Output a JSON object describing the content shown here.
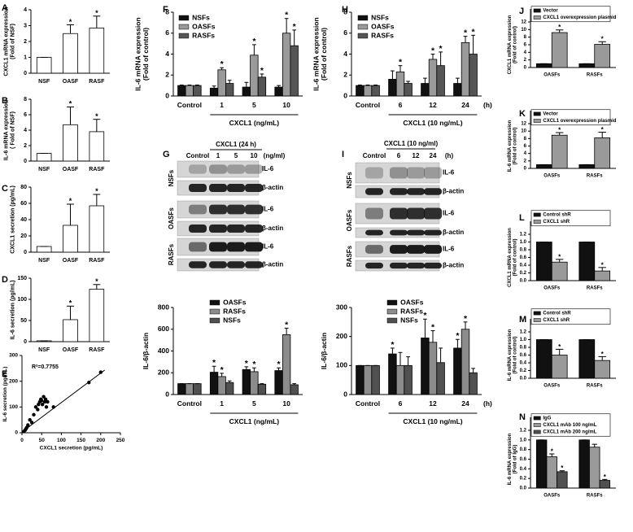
{
  "chart_data": [
    {
      "panel": "A",
      "type": "bar",
      "categories": [
        "NSF",
        "OASF",
        "RASF"
      ],
      "values": [
        1,
        2.5,
        2.85
      ],
      "errors": [
        0,
        0.55,
        0.75
      ],
      "annotations": [
        null,
        "*",
        "*"
      ],
      "color": "#ffffff",
      "ylim": [
        0,
        4
      ],
      "yticks": [
        0,
        1,
        2,
        3,
        4
      ],
      "ylabel": [
        "CXCL1 mRNA expression",
        "(Fold of NSF)"
      ]
    },
    {
      "panel": "B",
      "type": "bar",
      "categories": [
        "NSF",
        "OASF",
        "RASF"
      ],
      "values": [
        1,
        4.7,
        3.8
      ],
      "errors": [
        0,
        2.3,
        1.6
      ],
      "annotations": [
        null,
        "*",
        "*"
      ],
      "color": "#ffffff",
      "ylim": [
        0,
        8
      ],
      "yticks": [
        0,
        2,
        4,
        6,
        8
      ],
      "ylabel": [
        "IL-6 mRNA expression",
        "( Fold of NSF)"
      ]
    },
    {
      "panel": "C",
      "type": "bar",
      "categories": [
        "NSF",
        "OASF",
        "RASF"
      ],
      "values": [
        7,
        33,
        57
      ],
      "errors": [
        0,
        26,
        14
      ],
      "annotations": [
        null,
        "*",
        "*"
      ],
      "color": "#ffffff",
      "ylim": [
        0,
        80
      ],
      "yticks": [
        0,
        20,
        40,
        60,
        80
      ],
      "ylabel": [
        "CXCL1 secretion (pg/mL)"
      ]
    },
    {
      "panel": "D",
      "type": "bar",
      "categories": [
        "NSF",
        "OASF",
        "RASF"
      ],
      "values": [
        2,
        52,
        124
      ],
      "errors": [
        0,
        32,
        11
      ],
      "annotations": [
        null,
        "*",
        "*"
      ],
      "color": "#ffffff",
      "ylim": [
        0,
        150
      ],
      "yticks": [
        0,
        50,
        100,
        150
      ],
      "ylabel": [
        "IL-6 secretion (pg/mL)"
      ]
    },
    {
      "panel": "E",
      "type": "scatter",
      "x": [
        5,
        8,
        10,
        12,
        15,
        20,
        25,
        30,
        35,
        40,
        42,
        45,
        48,
        50,
        52,
        55,
        58,
        60,
        62,
        65,
        80,
        170,
        200
      ],
      "values": [
        5,
        10,
        15,
        20,
        30,
        50,
        40,
        70,
        100,
        90,
        110,
        120,
        130,
        125,
        110,
        140,
        120,
        130,
        100,
        120,
        100,
        195,
        235
      ],
      "color": "#000000",
      "fit_line": {
        "x": [
          0,
          210
        ],
        "y": [
          3,
          243
        ]
      },
      "annotation": "R²=0.7755",
      "xlim": [
        0,
        250
      ],
      "xticks": [
        0,
        50,
        100,
        150,
        200,
        250
      ],
      "ylim": [
        0,
        300
      ],
      "yticks": [
        0,
        100,
        200,
        300
      ],
      "xlabel": "CXCL1 secretion (pg/mL)",
      "ylabel": [
        "IL-6 secretion (pg/mL)"
      ]
    },
    {
      "panel": "F",
      "type": "bar",
      "categories": [
        "Control",
        "1",
        "5",
        "10"
      ],
      "xlabel": "CXCL1 (ng/mL)",
      "ylim": [
        0,
        8
      ],
      "yticks": [
        0,
        2,
        4,
        6,
        8
      ],
      "ylabel": [
        "IL-6 mRNA expression",
        "(Fold of control)"
      ],
      "legend": "upper left",
      "series": [
        {
          "name": "NSFs",
          "color": "#111111",
          "values": [
            1,
            0.75,
            0.85,
            0.85
          ],
          "errors": [
            0.05,
            0.2,
            0.45,
            0.15
          ]
        },
        {
          "name": "OASFs",
          "color": "#9a9a9a",
          "values": [
            1,
            2.5,
            3.9,
            6.0
          ],
          "errors": [
            0.05,
            0.2,
            1.0,
            1.4
          ],
          "annotations": [
            null,
            "*",
            "*",
            "*"
          ]
        },
        {
          "name": "RASFs",
          "color": "#555555",
          "values": [
            1,
            1.2,
            1.8,
            4.8
          ],
          "errors": [
            0.05,
            0.3,
            0.3,
            1.5
          ],
          "annotations": [
            null,
            null,
            "*",
            "*"
          ]
        }
      ]
    },
    {
      "panel": "H",
      "type": "bar",
      "categories": [
        "Control",
        "6",
        "12",
        "24"
      ],
      "x_unit": "(h)",
      "xlabel": "CXCL1 (10 ng/mL)",
      "ylim": [
        0,
        8
      ],
      "yticks": [
        0,
        2,
        4,
        6,
        8
      ],
      "ylabel": [
        "IL-6 mRNA expression",
        "(Fold of control)"
      ],
      "legend": "upper left",
      "series": [
        {
          "name": "NSFs",
          "color": "#111111",
          "values": [
            1,
            1.6,
            1.2,
            1.2
          ],
          "errors": [
            0.05,
            0.8,
            0.5,
            0.5
          ]
        },
        {
          "name": "OASFs",
          "color": "#9a9a9a",
          "values": [
            1,
            2.3,
            3.5,
            5.1
          ],
          "errors": [
            0.05,
            0.6,
            0.5,
            0.6
          ],
          "annotations": [
            null,
            "*",
            "*",
            "*"
          ]
        },
        {
          "name": "RASFs",
          "color": "#555555",
          "values": [
            1,
            1.2,
            2.9,
            4.0
          ],
          "errors": [
            0.05,
            0.2,
            1.3,
            1.8
          ],
          "annotations": [
            null,
            null,
            "*",
            "*"
          ]
        }
      ]
    },
    {
      "type": "bar",
      "categories": [
        "Control",
        "1",
        "5",
        "10"
      ],
      "xlabel": "CXCL1 (ng/mL)",
      "ylim": [
        0,
        800
      ],
      "yticks": [
        0,
        200,
        400,
        600,
        800
      ],
      "ylabel": [
        "IL-6/β-actin"
      ],
      "legend": "upper center",
      "series": [
        {
          "name": "OASFs",
          "color": "#111111",
          "values": [
            100,
            205,
            230,
            220
          ],
          "errors": [
            0,
            55,
            25,
            25
          ],
          "annotations": [
            null,
            "*",
            "*",
            "*"
          ]
        },
        {
          "name": "RASFs",
          "color": "#8c8c8c",
          "values": [
            100,
            165,
            210,
            550
          ],
          "errors": [
            0,
            30,
            35,
            60
          ],
          "annotations": [
            null,
            "*",
            "*",
            "*"
          ]
        },
        {
          "name": "NSFs",
          "color": "#505050",
          "values": [
            100,
            110,
            95,
            90
          ],
          "errors": [
            0,
            15,
            5,
            10
          ]
        }
      ]
    },
    {
      "type": "bar",
      "categories": [
        "Control",
        "6",
        "12",
        "24"
      ],
      "x_unit": "(h)",
      "xlabel": "CXCL1 (10 ng/mL)",
      "ylim": [
        0,
        300
      ],
      "yticks": [
        0,
        100,
        200,
        300
      ],
      "ylabel": [
        "IL-6/β-actin"
      ],
      "legend": "upper center",
      "series": [
        {
          "name": "OASFs",
          "color": "#111111",
          "values": [
            100,
            140,
            195,
            160
          ],
          "errors": [
            0,
            20,
            65,
            30
          ],
          "annotations": [
            null,
            "*",
            "*",
            "*"
          ]
        },
        {
          "name": "RASFs",
          "color": "#8c8c8c",
          "values": [
            100,
            100,
            180,
            225
          ],
          "errors": [
            0,
            45,
            40,
            25
          ],
          "annotations": [
            null,
            null,
            "*",
            "*"
          ]
        },
        {
          "name": "NSFs",
          "color": "#505050",
          "values": [
            100,
            100,
            110,
            75
          ],
          "errors": [
            0,
            30,
            50,
            15
          ]
        }
      ]
    },
    {
      "panel": "J",
      "type": "bar",
      "categories": [
        "OASFs",
        "RASFs"
      ],
      "ylim": [
        0,
        12
      ],
      "yticks": [
        0,
        2,
        4,
        6,
        8,
        10,
        12
      ],
      "ylabel": [
        "CXCL1 mRNA expression",
        "(Fold of control)"
      ],
      "legend": "upper left",
      "series": [
        {
          "name": "Vector",
          "color": "#111111",
          "values": [
            1,
            1
          ],
          "errors": [
            0,
            0
          ]
        },
        {
          "name": "CXCL1 overexpression plasmid",
          "color": "#9a9a9a",
          "values": [
            9.2,
            6.1
          ],
          "errors": [
            0.7,
            0.7
          ],
          "annotations": [
            "*",
            "*"
          ]
        }
      ]
    },
    {
      "panel": "K",
      "type": "bar",
      "categories": [
        "OASFs",
        "RASFs"
      ],
      "ylim": [
        0,
        12
      ],
      "yticks": [
        0,
        2,
        4,
        6,
        8,
        10,
        12
      ],
      "ylabel": [
        "IL-6 mRNA expression",
        "(Fold of control)"
      ],
      "legend": "upper left",
      "series": [
        {
          "name": "Vector",
          "color": "#111111",
          "values": [
            1,
            1
          ],
          "errors": [
            0,
            0
          ]
        },
        {
          "name": "CXCL1 overexpression plasmid",
          "color": "#9a9a9a",
          "values": [
            8.9,
            8.2
          ],
          "errors": [
            0.7,
            1.5
          ],
          "annotations": [
            "*",
            "*"
          ]
        }
      ]
    },
    {
      "panel": "L",
      "type": "bar",
      "categories": [
        "OASFs",
        "RASFs"
      ],
      "ylim": [
        0,
        1.2
      ],
      "yticks": [
        {
          "value": 0,
          "label": "0.0"
        },
        0.2,
        0.4,
        0.6,
        0.8,
        {
          "value": 1,
          "label": "1.0"
        },
        1.2
      ],
      "ylabel": [
        "CXCL1 mRNA expression",
        "(Fold of control)"
      ],
      "legend": "upper left",
      "series": [
        {
          "name": "Control shR",
          "color": "#111111",
          "values": [
            1,
            1
          ],
          "errors": [
            0,
            0
          ]
        },
        {
          "name": "CXCL1 shR",
          "color": "#9a9a9a",
          "values": [
            0.48,
            0.25
          ],
          "errors": [
            0.07,
            0.09
          ],
          "annotations": [
            "*",
            "*"
          ]
        }
      ]
    },
    {
      "panel": "M",
      "type": "bar",
      "categories": [
        "OASFs",
        "RASFs"
      ],
      "ylim": [
        0,
        1.2
      ],
      "yticks": [
        {
          "value": 0,
          "label": "0.0"
        },
        0.2,
        0.4,
        0.6,
        0.8,
        {
          "value": 1,
          "label": "1.0"
        },
        1.2
      ],
      "ylabel": [
        "IL-6 mRNA expression",
        "(Fold of control)"
      ],
      "legend": "upper left",
      "series": [
        {
          "name": "Control shR",
          "color": "#111111",
          "values": [
            1,
            1
          ],
          "errors": [
            0,
            0
          ]
        },
        {
          "name": "CXCL1 shR",
          "color": "#9a9a9a",
          "values": [
            0.6,
            0.46
          ],
          "errors": [
            0.15,
            0.1
          ],
          "annotations": [
            "*",
            "*"
          ]
        }
      ]
    },
    {
      "panel": "N",
      "type": "bar",
      "categories": [
        "OASFs",
        "RASFs"
      ],
      "ylim": [
        0,
        1.2
      ],
      "yticks": [
        {
          "value": 0,
          "label": "0.0"
        },
        0.2,
        0.4,
        0.6,
        0.8,
        {
          "value": 1,
          "label": "1.0"
        },
        1.2
      ],
      "ylabel": [
        "IL-6 mRNA expression",
        "(Fold of IgG)"
      ],
      "legend": "upper left",
      "series": [
        {
          "name": "IgG",
          "color": "#111111",
          "values": [
            1,
            1
          ],
          "errors": [
            0,
            0
          ]
        },
        {
          "name": "CXCL1 mAb 100 ng/mL",
          "color": "#9a9a9a",
          "values": [
            0.65,
            0.85
          ],
          "errors": [
            0.06,
            0.06
          ],
          "annotations": [
            "*",
            null
          ]
        },
        {
          "name": "CXCL1 mAb 200 ng/mL",
          "color": "#505050",
          "values": [
            0.34,
            0.16
          ],
          "errors": [
            0.02,
            0.02
          ],
          "annotations": [
            "*",
            "*"
          ]
        }
      ]
    }
  ],
  "blots": [
    {
      "panel": "G",
      "header": "CXCL1 (24 h)",
      "lanes": [
        "Control",
        "1",
        "5",
        "10"
      ],
      "unit": "(ng/ml)",
      "groups": [
        "NSFs",
        "OASFs",
        "RASFs"
      ],
      "bands": [
        "IL-6",
        "β-actin"
      ]
    },
    {
      "panel": "I",
      "header": "CXCL1 (10 ng/ml)",
      "lanes": [
        "Control",
        "6",
        "12",
        "24"
      ],
      "unit": "(h)",
      "groups": [
        "NSFs",
        "OASFs",
        "RASFs"
      ],
      "bands": [
        "IL-6",
        "β-actin"
      ]
    }
  ]
}
